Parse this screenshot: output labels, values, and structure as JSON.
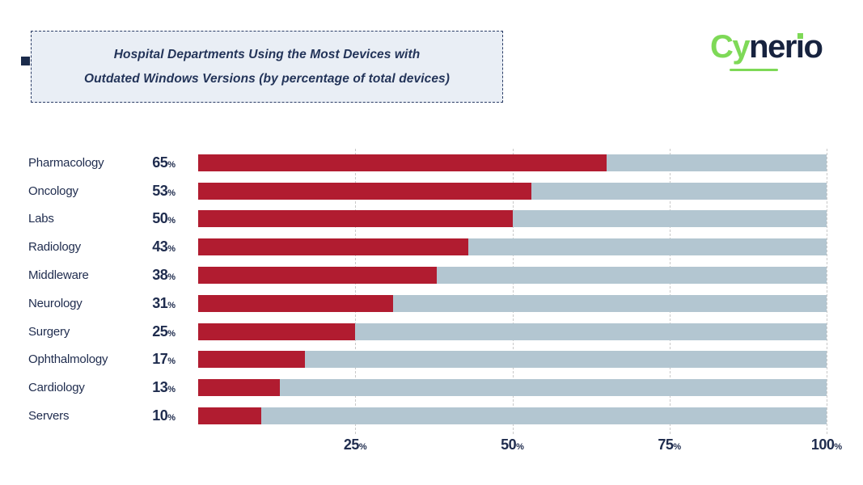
{
  "title_box": {
    "line1": "Hospital Departments Using the Most Devices with",
    "line2": "Outdated Windows Versions (by percentage of total devices)"
  },
  "logo": {
    "cy": "Cy",
    "ner": "ner",
    "i": "i",
    "o": "o",
    "green_color": "#7ed957",
    "navy_color": "#17233f"
  },
  "chart_data": {
    "type": "bar",
    "orientation": "horizontal",
    "title": "Hospital Departments Using the Most Devices with Outdated Windows Versions (by percentage of total devices)",
    "categories": [
      "Pharmacology",
      "Oncology",
      "Labs",
      "Radiology",
      "Middleware",
      "Neurology",
      "Surgery",
      "Ophthalmology",
      "Cardiology",
      "Servers"
    ],
    "values": [
      65,
      53,
      50,
      43,
      38,
      31,
      25,
      17,
      13,
      10
    ],
    "value_suffix": "%",
    "xlim": [
      0,
      100
    ],
    "x_tick_values": [
      25,
      50,
      75,
      100
    ],
    "x_tick_suffix": "%",
    "bar_color": "#b11c30",
    "track_color": "#b3c6d1",
    "grid": "vertical-dashed",
    "legend": false
  }
}
